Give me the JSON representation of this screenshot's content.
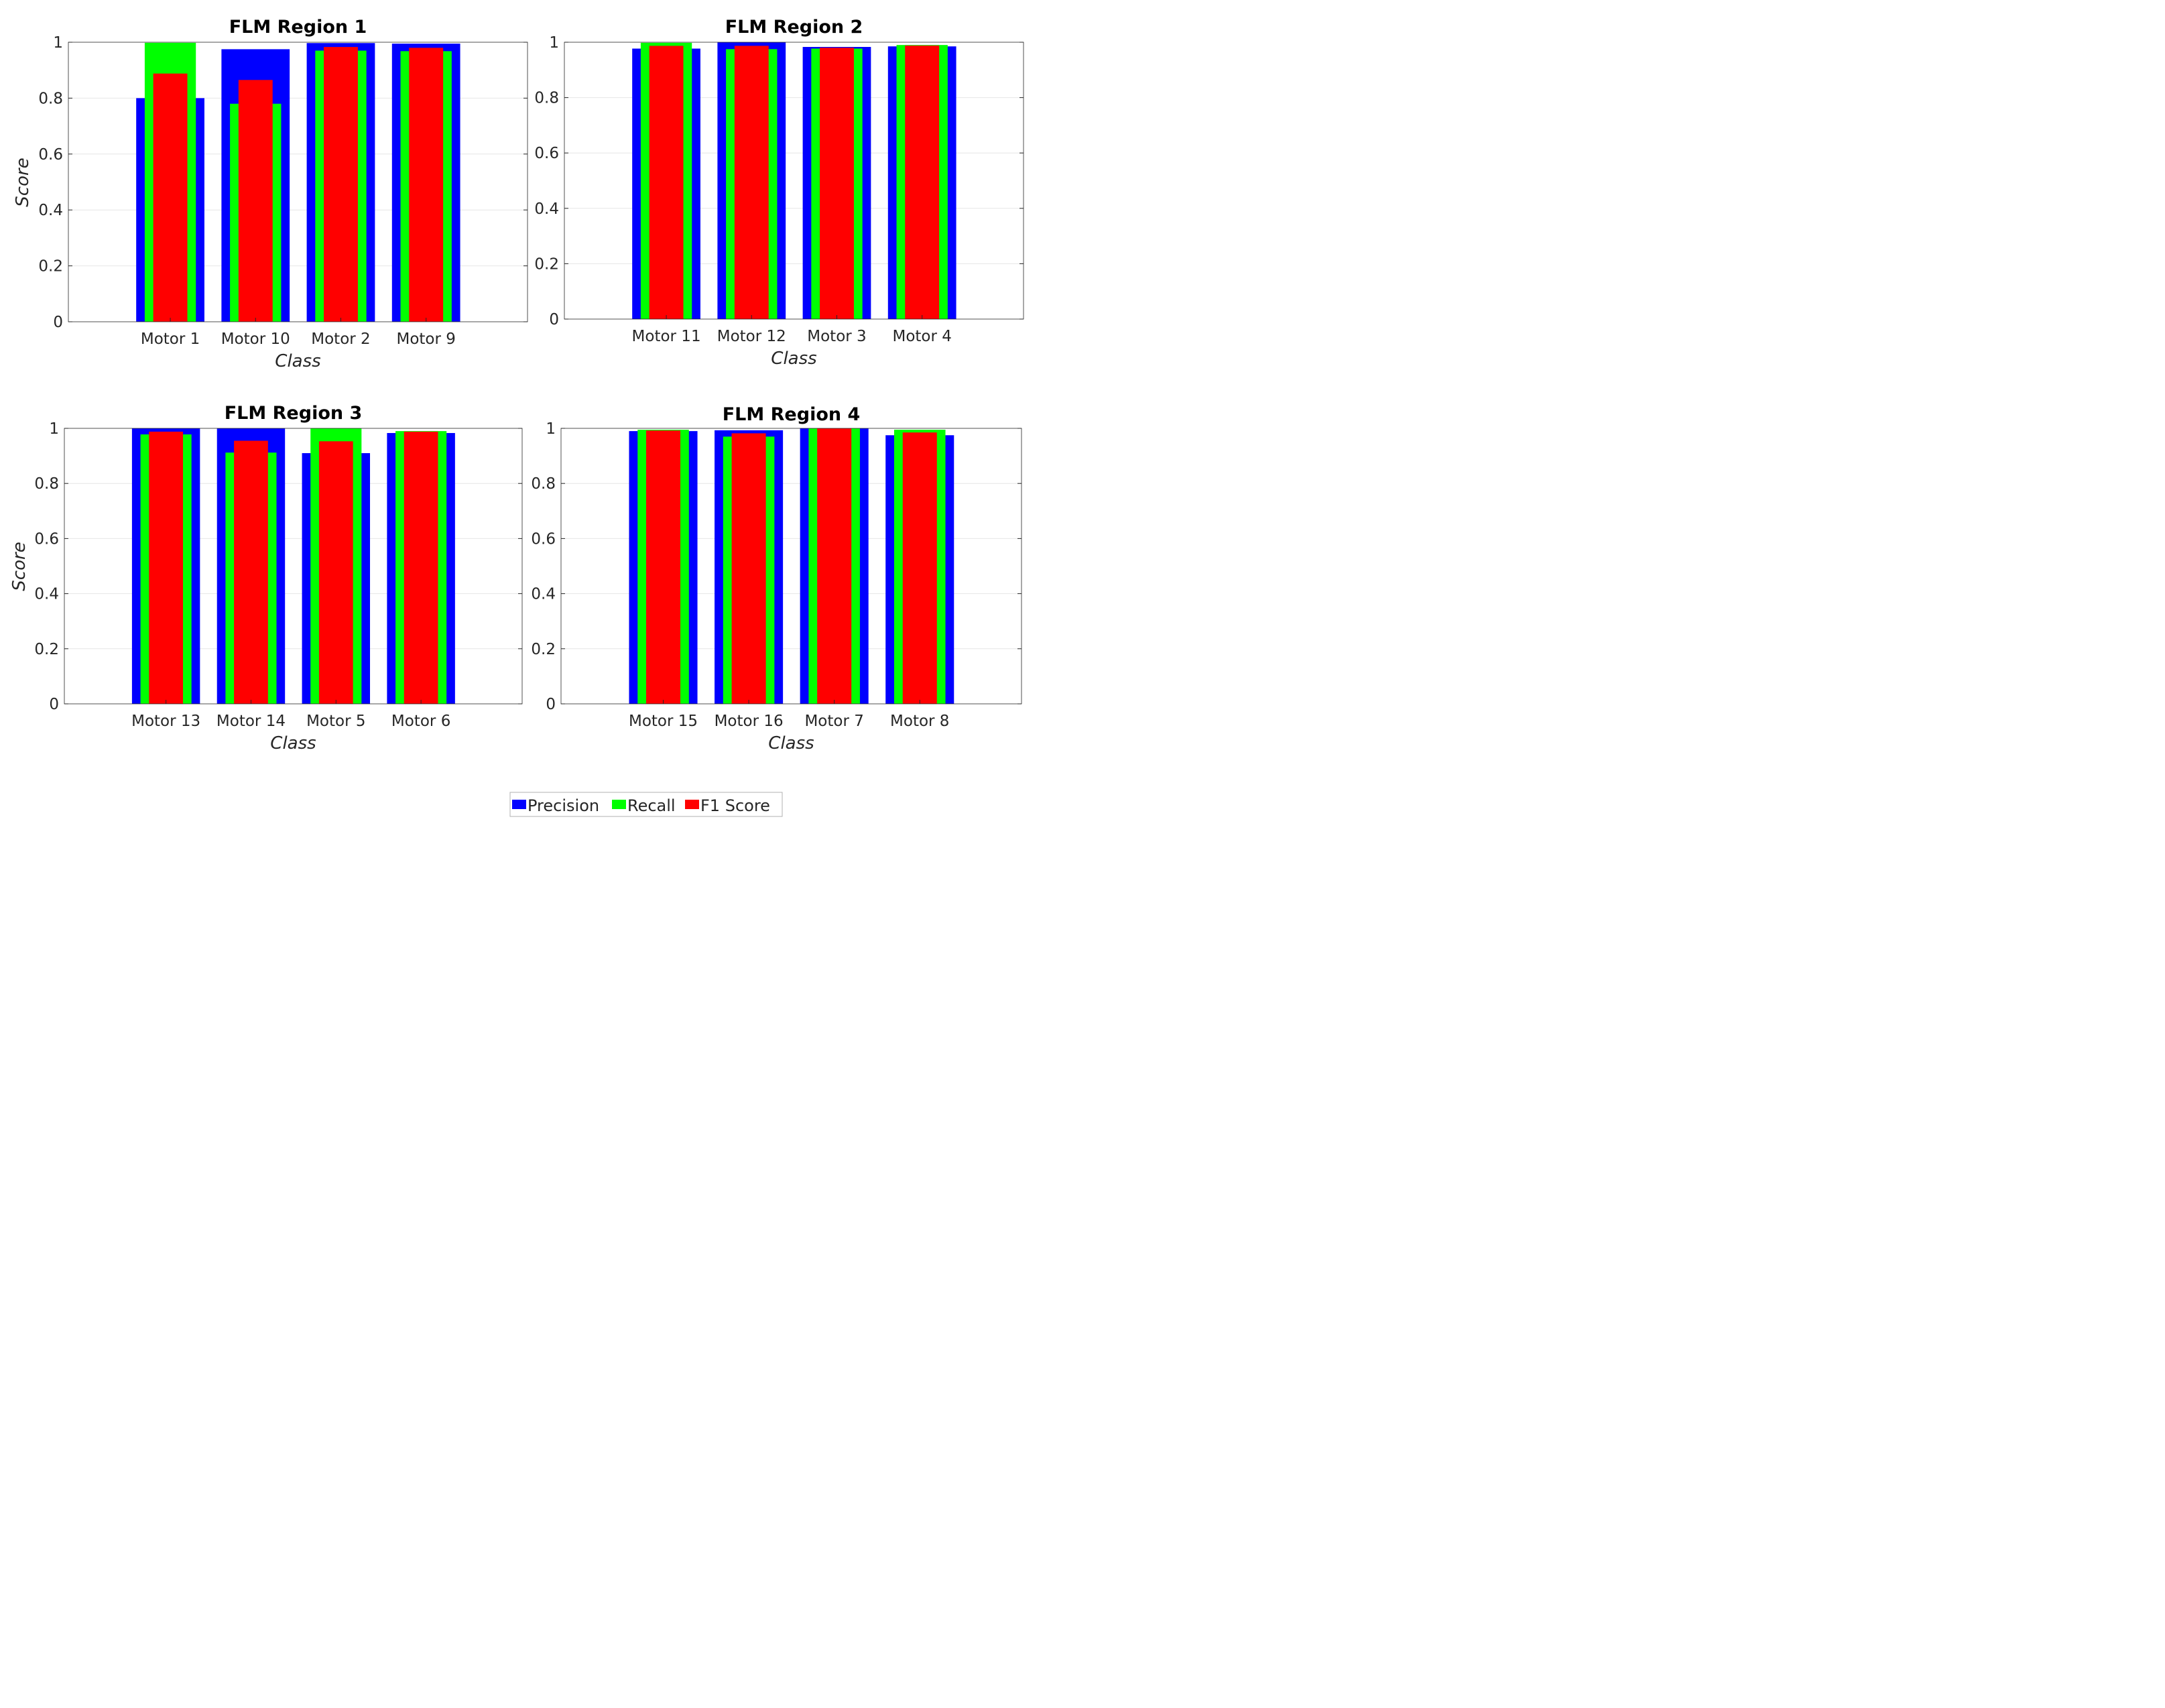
{
  "colors": {
    "precision": "#0000ff",
    "recall": "#00ff00",
    "f1": "#ff0000",
    "axis": "#262626",
    "grid": "#e6e6e6"
  },
  "legend": {
    "entries": [
      "Precision",
      "Recall",
      "F1 Score"
    ],
    "placement": "bottom-center"
  },
  "chart_data": [
    {
      "type": "bar",
      "title": "FLM Region 1",
      "xlabel": "Class",
      "ylabel": "Score",
      "ylim": [
        0,
        1
      ],
      "yticks": [
        "0",
        "0.2",
        "0.4",
        "0.6",
        "0.8",
        "1"
      ],
      "categories": [
        "Motor 1",
        "Motor 10",
        "Motor 2",
        "Motor 9"
      ],
      "series": [
        {
          "name": "Precision",
          "values": [
            0.8,
            0.975,
            0.997,
            0.995
          ]
        },
        {
          "name": "Recall",
          "values": [
            0.998,
            0.78,
            0.97,
            0.968
          ]
        },
        {
          "name": "F1 Score",
          "values": [
            0.888,
            0.865,
            0.983,
            0.98
          ]
        }
      ]
    },
    {
      "type": "bar",
      "title": "FLM Region 2",
      "xlabel": "Class",
      "ylabel": "",
      "ylim": [
        0,
        1
      ],
      "yticks": [
        "0",
        "0.2",
        "0.4",
        "0.6",
        "0.8",
        "1"
      ],
      "categories": [
        "Motor 11",
        "Motor 12",
        "Motor 3",
        "Motor 4"
      ],
      "series": [
        {
          "name": "Precision",
          "values": [
            0.977,
            1.0,
            0.983,
            0.985
          ]
        },
        {
          "name": "Recall",
          "values": [
            0.998,
            0.975,
            0.977,
            0.99
          ]
        },
        {
          "name": "F1 Score",
          "values": [
            0.987,
            0.987,
            0.98,
            0.988
          ]
        }
      ]
    },
    {
      "type": "bar",
      "title": "FLM Region 3",
      "xlabel": "Class",
      "ylabel": "Score",
      "ylim": [
        0,
        1
      ],
      "yticks": [
        "0",
        "0.2",
        "0.4",
        "0.6",
        "0.8",
        "1"
      ],
      "categories": [
        "Motor 13",
        "Motor 14",
        "Motor 5",
        "Motor 6"
      ],
      "series": [
        {
          "name": "Precision",
          "values": [
            1.0,
            1.0,
            0.91,
            0.983
          ]
        },
        {
          "name": "Recall",
          "values": [
            0.978,
            0.912,
            1.0,
            0.99
          ]
        },
        {
          "name": "F1 Score",
          "values": [
            0.988,
            0.955,
            0.953,
            0.988
          ]
        }
      ]
    },
    {
      "type": "bar",
      "title": "FLM Region 4",
      "xlabel": "Class",
      "ylabel": "",
      "ylim": [
        0,
        1
      ],
      "yticks": [
        "0",
        "0.2",
        "0.4",
        "0.6",
        "0.8",
        "1"
      ],
      "categories": [
        "Motor 15",
        "Motor 16",
        "Motor 7",
        "Motor 8"
      ],
      "series": [
        {
          "name": "Precision",
          "values": [
            0.99,
            0.993,
            1.0,
            0.975
          ]
        },
        {
          "name": "Recall",
          "values": [
            0.995,
            0.97,
            1.0,
            0.995
          ]
        },
        {
          "name": "F1 Score",
          "values": [
            0.992,
            0.982,
            1.0,
            0.985
          ]
        }
      ]
    }
  ]
}
